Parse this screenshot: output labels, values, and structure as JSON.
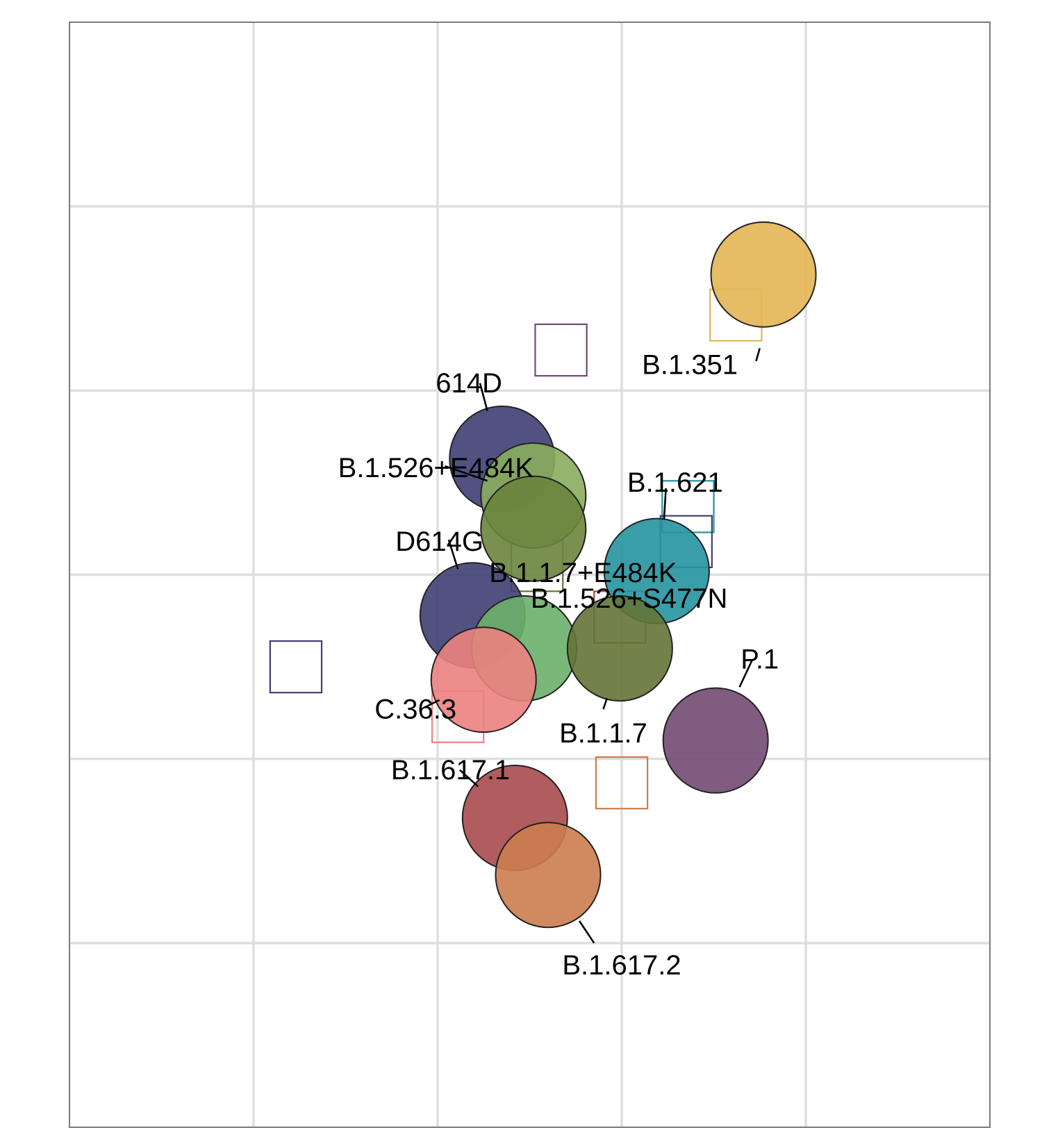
{
  "chart_data": {
    "type": "scatter",
    "title": "",
    "xlabel": "",
    "ylabel": "",
    "xlim": [
      0,
      5
    ],
    "ylim": [
      0,
      6
    ],
    "grid": true,
    "legend": "none",
    "antigens": [
      {
        "name": "B.1.351",
        "x": 3.77,
        "y": 4.63,
        "color": "#E3B654",
        "label_dx": -0.35,
        "label_dy": -0.5
      },
      {
        "name": "614D",
        "x": 2.35,
        "y": 3.63,
        "color": "#3F3F74",
        "label_dx": -0.4,
        "label_dy": 0.25
      },
      {
        "name": "B.1.526+E484K",
        "x": 2.52,
        "y": 3.43,
        "color": "#8AAD5E",
        "label_dx": -0.9,
        "label_dy": 0.25
      },
      {
        "name": "B.1.526+E484K",
        "x": 2.52,
        "y": 3.25,
        "color": "#6A843E",
        "label_dx": 0,
        "label_dy": 0,
        "label": false
      },
      {
        "name": "B.1.621",
        "x": 3.19,
        "y": 3.02,
        "color": "#25939F",
        "label_dx": 0.3,
        "label_dy": 0.5
      },
      {
        "name": "D614G",
        "x": 2.19,
        "y": 2.78,
        "color": "#3F3F74",
        "label_dx": -0.5,
        "label_dy": 0.45
      },
      {
        "name": "B.1.1.7+E484K",
        "x": 2.47,
        "y": 2.6,
        "color": "#6BB06A",
        "label_dx": 0.35,
        "label_dy": 0.55
      },
      {
        "name": "B.1.526+S477N",
        "x": 2.99,
        "y": 2.6,
        "color": "#637436",
        "label_dx": 0.35,
        "label_dy": 0.38
      },
      {
        "name": "C.36.3",
        "x": 2.25,
        "y": 2.43,
        "color": "#EB8280",
        "label_dx": -0.55,
        "label_dy": -0.17
      },
      {
        "name": "P.1",
        "x": 3.51,
        "y": 2.1,
        "color": "#724A73",
        "label_dx": 0.4,
        "label_dy": 0.45
      },
      {
        "name": "B.1.617.1",
        "x": 2.42,
        "y": 1.68,
        "color": "#A84A4D",
        "label_dx": -0.7,
        "label_dy": 0.25
      },
      {
        "name": "B.1.617.2",
        "x": 2.6,
        "y": 1.37,
        "color": "#CC7D4F",
        "label_dx": 0.4,
        "label_dy": -0.5
      }
    ],
    "point_labels": [
      {
        "text": "B.1.351",
        "x": 3.37,
        "y": 4.13,
        "lx1": 3.73,
        "ly1": 4.16,
        "lx2": 3.75,
        "ly2": 4.23
      },
      {
        "text": "614D",
        "x": 2.17,
        "y": 4.03,
        "lx1": 2.23,
        "ly1": 4.04,
        "lx2": 2.27,
        "ly2": 3.89
      },
      {
        "text": "B.1.526+E484K",
        "x": 1.99,
        "y": 3.57,
        "lx1": 2.04,
        "ly1": 3.59,
        "lx2": 2.27,
        "ly2": 3.51
      },
      {
        "text": "B.1.621",
        "x": 3.29,
        "y": 3.49,
        "lx1": 3.24,
        "ly1": 3.47,
        "lx2": 3.23,
        "ly2": 3.3
      },
      {
        "text": "D614G",
        "x": 2.01,
        "y": 3.17,
        "lx1": 2.06,
        "ly1": 3.19,
        "lx2": 2.11,
        "ly2": 3.03
      },
      {
        "text": "B.1.1.7+E484K",
        "x": 2.79,
        "y": 3.0,
        "lx1": 0,
        "ly1": 0,
        "lx2": 0,
        "ly2": 0
      },
      {
        "text": "B.1.526+S477N",
        "x": 3.04,
        "y": 2.86,
        "lx1": 0,
        "ly1": 0,
        "lx2": 0,
        "ly2": 0
      },
      {
        "text": "C.36.3",
        "x": 1.88,
        "y": 2.26,
        "lx1": 1.93,
        "ly1": 2.28,
        "lx2": 2.01,
        "ly2": 2.32
      },
      {
        "text": "P.1",
        "x": 3.75,
        "y": 2.53,
        "lx1": 3.71,
        "ly1": 2.54,
        "lx2": 3.64,
        "ly2": 2.39
      },
      {
        "text": "B.1.617.1",
        "x": 2.07,
        "y": 1.93,
        "lx1": 2.12,
        "ly1": 1.94,
        "lx2": 2.22,
        "ly2": 1.85
      },
      {
        "text": "B.1.617.2",
        "x": 3.0,
        "y": 0.87,
        "lx1": 2.85,
        "ly1": 1.0,
        "lx2": 2.77,
        "ly2": 1.12
      },
      {
        "text": "B.1.1.7",
        "x": 2.9,
        "y": 2.13,
        "lx1": 2.9,
        "ly1": 2.27,
        "lx2": 2.92,
        "ly2": 2.33
      }
    ],
    "sera": [
      {
        "x": 3.62,
        "y": 4.41,
        "color": "#E3B654"
      },
      {
        "x": 2.67,
        "y": 4.22,
        "color": "#724A73"
      },
      {
        "x": 3.36,
        "y": 3.37,
        "color": "#25939F"
      },
      {
        "x": 3.35,
        "y": 3.18,
        "color": "#3F3F74"
      },
      {
        "x": 2.54,
        "y": 3.05,
        "color": "#637436"
      },
      {
        "x": 2.99,
        "y": 2.77,
        "color": "#A84A4D"
      },
      {
        "x": 1.23,
        "y": 2.5,
        "color": "#3F3F74"
      },
      {
        "x": 2.11,
        "y": 2.23,
        "color": "#EB8280"
      },
      {
        "x": 3.0,
        "y": 1.87,
        "color": "#CC7D4F"
      }
    ]
  }
}
